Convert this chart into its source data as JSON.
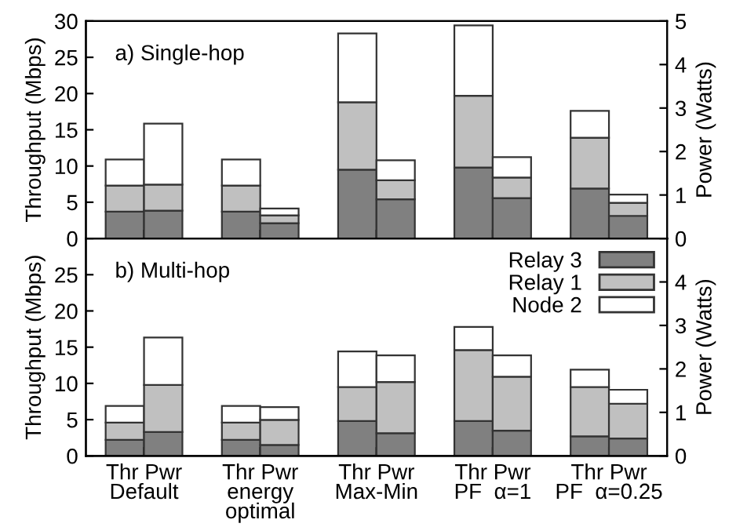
{
  "chart_data": [
    {
      "type": "bar",
      "stacked": true,
      "categories": [
        null,
        null,
        null,
        null,
        null
      ],
      "ylabel": "Throughput (Mbps)",
      "y2label": "Power (Watts)",
      "annotations": [
        "a) Single-hop"
      ],
      "ylim": [
        0,
        30
      ],
      "yticks": [
        0,
        5,
        10,
        15,
        20,
        25,
        30
      ],
      "y2lim": [
        0,
        5
      ],
      "y2ticks": [
        0,
        1,
        2,
        3,
        4,
        5
      ],
      "grid": false,
      "legend": false,
      "tick_labels": "y",
      "series": [
        {
          "color": "#808080",
          "axis": "y",
          "values": [
            3.7,
            3.7,
            9.5,
            9.8,
            6.9
          ]
        },
        {
          "color": "#c0c0c0",
          "axis": "y",
          "values": [
            3.6,
            3.6,
            9.3,
            9.9,
            7.0
          ]
        },
        {
          "color": "#ffffff",
          "axis": "y",
          "values": [
            3.6,
            3.6,
            9.5,
            9.7,
            3.7
          ]
        },
        {
          "color": "#808080",
          "axis": "y2",
          "values": [
            0.64,
            0.35,
            0.9,
            0.93,
            0.52
          ]
        },
        {
          "color": "#c0c0c0",
          "axis": "y2",
          "values": [
            0.6,
            0.18,
            0.44,
            0.47,
            0.3
          ]
        },
        {
          "color": "#ffffff",
          "axis": "y2",
          "values": [
            1.4,
            0.16,
            0.46,
            0.47,
            0.19
          ]
        }
      ]
    },
    {
      "type": "bar",
      "stacked": true,
      "categories": [
        "Thr Pwr\nDefault",
        "Thr Pwr\nenergy\noptimal",
        "Thr Pwr\nMax-Min",
        "Thr Pwr\nPF  α=1",
        "Thr Pwr\nPF  α=0.25"
      ],
      "ylabel": "Throughput (Mbps)",
      "y2label": "Power (Watts)",
      "annotations": [
        "b) Multi-hop"
      ],
      "ylim": [
        0,
        30
      ],
      "yticks": [
        0,
        5,
        10,
        15,
        20,
        25,
        {
          "value": 30,
          "label": null
        }
      ],
      "y2lim": [
        0,
        5
      ],
      "y2ticks": [
        0,
        1,
        2,
        3,
        4,
        {
          "value": 5,
          "label": null
        }
      ],
      "grid": false,
      "legend": "top right",
      "series": [
        {
          "name": "Relay 3",
          "color": "#808080",
          "axis": "y",
          "values": [
            2.2,
            2.2,
            4.8,
            4.8,
            2.7
          ]
        },
        {
          "name": "Relay 1",
          "color": "#c0c0c0",
          "axis": "y",
          "values": [
            2.4,
            2.4,
            4.7,
            9.8,
            6.8
          ]
        },
        {
          "name": "Node 2",
          "color": "#ffffff",
          "axis": "y",
          "values": [
            2.3,
            2.3,
            4.9,
            3.2,
            2.4
          ]
        },
        {
          "color": "#808080",
          "axis": "y2",
          "values": [
            0.55,
            0.25,
            0.52,
            0.58,
            0.4
          ]
        },
        {
          "color": "#c0c0c0",
          "axis": "y2",
          "values": [
            1.08,
            0.58,
            1.18,
            1.24,
            0.8
          ]
        },
        {
          "color": "#ffffff",
          "axis": "y2",
          "values": [
            1.09,
            0.29,
            0.61,
            0.49,
            0.32
          ]
        }
      ]
    }
  ]
}
